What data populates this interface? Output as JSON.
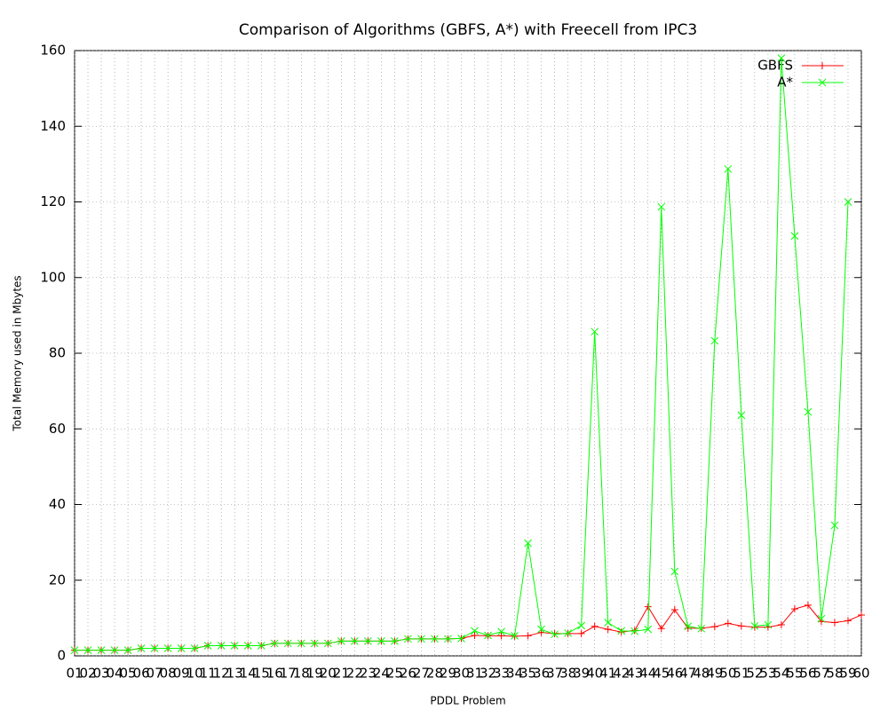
{
  "chart_data": {
    "type": "line",
    "title": "Comparison of Algorithms (GBFS, A*) with Freecell from IPC3",
    "x_label": "PDDL Problem",
    "y_label": "Total Memory used in Mbytes",
    "categories": [
      "01",
      "02",
      "03",
      "04",
      "05",
      "06",
      "07",
      "08",
      "09",
      "10",
      "11",
      "12",
      "13",
      "14",
      "15",
      "16",
      "17",
      "18",
      "19",
      "20",
      "21",
      "22",
      "23",
      "24",
      "25",
      "26",
      "27",
      "28",
      "29",
      "30",
      "31",
      "32",
      "33",
      "34",
      "35",
      "36",
      "37",
      "38",
      "39",
      "40",
      "41",
      "42",
      "43",
      "44",
      "45",
      "46",
      "47",
      "48",
      "49",
      "50",
      "51",
      "52",
      "53",
      "54",
      "55",
      "56",
      "57",
      "58",
      "59",
      "60"
    ],
    "series": [
      {
        "name": "GBFS",
        "color": "#ff0000",
        "marker": "+",
        "values": [
          1.5,
          1.5,
          1.5,
          1.5,
          1.5,
          2,
          2,
          2,
          2,
          2,
          2.7,
          2.7,
          2.7,
          2.7,
          2.7,
          3.3,
          3.3,
          3.3,
          3.3,
          3.3,
          3.9,
          3.9,
          3.9,
          3.9,
          3.9,
          4.5,
          4.5,
          4.5,
          4.5,
          4.6,
          5.4,
          5.3,
          5.3,
          5.2,
          5.3,
          6.2,
          5.9,
          5.9,
          5.9,
          7.8,
          7,
          6.3,
          6.7,
          13,
          7.2,
          12.2,
          7.3,
          7.3,
          7.7,
          8.6,
          7.9,
          7.6,
          7.6,
          8.2,
          12.4,
          13.4,
          9.1,
          8.8,
          9.3,
          10.8
        ]
      },
      {
        "name": "A*",
        "color": "#00ff00",
        "marker": "x",
        "values": [
          1.5,
          1.5,
          1.5,
          1.5,
          1.5,
          2,
          2,
          2,
          2,
          2,
          2.7,
          2.7,
          2.7,
          2.7,
          2.7,
          3.3,
          3.3,
          3.3,
          3.3,
          3.3,
          3.9,
          3.9,
          3.9,
          3.9,
          3.9,
          4.5,
          4.5,
          4.5,
          4.5,
          4.6,
          6.6,
          5.4,
          6.4,
          5.3,
          29.8,
          7,
          5.7,
          6,
          8,
          85.7,
          8.8,
          6.6,
          6.5,
          7,
          118.7,
          22.3,
          7.8,
          7.2,
          83.3,
          128.7,
          63.6,
          7.9,
          8.2,
          158,
          111,
          64.5,
          9.8,
          34.5,
          120,
          null
        ]
      }
    ],
    "ylim": [
      0,
      160
    ],
    "yticks": [
      0,
      20,
      40,
      60,
      80,
      100,
      120,
      140,
      160
    ],
    "grid": true,
    "legend": "top-right"
  }
}
